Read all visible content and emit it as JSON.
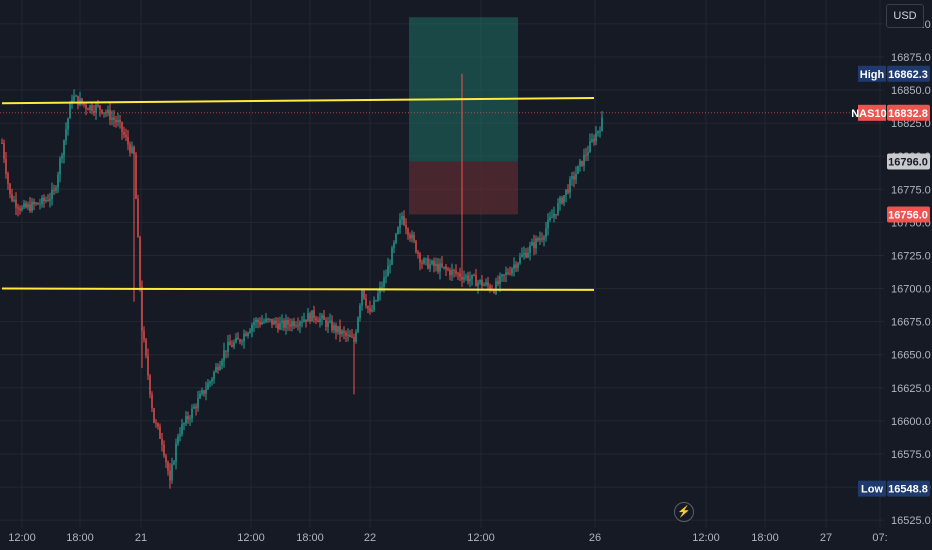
{
  "currency": "USD",
  "instrument": "NAS100",
  "prices": {
    "high": {
      "label": "High",
      "value": "16862.3"
    },
    "last": {
      "label": "NAS100",
      "value": "16832.8"
    },
    "entry": {
      "value": "16796.0"
    },
    "stop": {
      "value": "16756.0"
    },
    "low": {
      "label": "Low",
      "value": "16548.8"
    }
  },
  "colors": {
    "background": "#161a25",
    "up": "#26a69a",
    "down": "#ef5350",
    "level_line": "#ffeb3b",
    "target_zone": "#1f6f63",
    "stop_zone": "#6b2e33"
  },
  "chart_data": {
    "type": "candlestick",
    "ylim": [
      16510,
      16912
    ],
    "yticks": [
      16525.0,
      16550.0,
      16575.0,
      16600.0,
      16625.0,
      16650.0,
      16675.0,
      16700.0,
      16725.0,
      16750.0,
      16775.0,
      16800.0,
      16825.0,
      16850.0,
      16875.0,
      16900.0
    ],
    "xticks": [
      "12:00",
      "18:00",
      "21",
      "12:00",
      "18:00",
      "22",
      "12:00",
      "26",
      "12:00",
      "18:00",
      "27",
      "07:"
    ],
    "levels": [
      {
        "from_bar": 0,
        "to_bar": 194,
        "start": 16840,
        "end": 16844
      },
      {
        "from_bar": 0,
        "to_bar": 194,
        "start": 16700,
        "end": 16699
      }
    ],
    "position": {
      "from_bar": 202,
      "to_bar": 256,
      "entry": 16796.0,
      "target": 16905,
      "stop": 16756.0
    },
    "series": [
      {
        "type": "candles",
        "anchors": [
          [
            0,
            16810
          ],
          [
            4,
            16770
          ],
          [
            10,
            16760
          ],
          [
            20,
            16765
          ],
          [
            26,
            16772
          ],
          [
            35,
            16845
          ],
          [
            42,
            16838
          ],
          [
            50,
            16836
          ],
          [
            58,
            16825
          ],
          [
            66,
            16800
          ],
          [
            70,
            16670
          ],
          [
            76,
            16600
          ],
          [
            80,
            16585
          ],
          [
            84,
            16555
          ],
          [
            88,
            16590
          ],
          [
            96,
            16610
          ],
          [
            104,
            16630
          ],
          [
            112,
            16655
          ],
          [
            118,
            16660
          ],
          [
            126,
            16675
          ],
          [
            134,
            16675
          ],
          [
            140,
            16672
          ],
          [
            156,
            16680
          ],
          [
            176,
            16660
          ],
          [
            180,
            16700
          ],
          [
            184,
            16680
          ],
          [
            192,
            16710
          ],
          [
            200,
            16755
          ],
          [
            210,
            16720
          ],
          [
            230,
            16710
          ],
          [
            238,
            16705
          ],
          [
            246,
            16700
          ],
          [
            256,
            16718
          ],
          [
            270,
            16740
          ],
          [
            288,
            16790
          ],
          [
            300,
            16826
          ]
        ],
        "ranges": [
          [
            0,
            200,
            16560,
            16860
          ],
          [
            200,
            300,
            16620,
            16862
          ]
        ],
        "low_point": [
          84,
          16548.8
        ],
        "high_point": [
          230,
          16862.3
        ]
      }
    ]
  }
}
